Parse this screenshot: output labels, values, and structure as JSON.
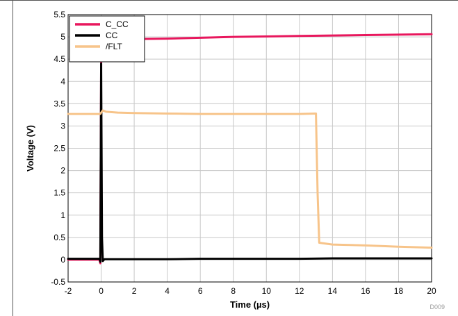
{
  "chart_data": {
    "type": "line",
    "xlabel": "Time (µs)",
    "ylabel": "Voltage (V)",
    "xlim": [
      -2,
      20
    ],
    "ylim": [
      -0.5,
      5.5
    ],
    "xticks": [
      -2,
      0,
      2,
      4,
      6,
      8,
      10,
      12,
      14,
      16,
      18,
      20
    ],
    "yticks": [
      -0.5,
      0,
      0.5,
      1,
      1.5,
      2,
      2.5,
      3,
      3.5,
      4,
      4.5,
      5,
      5.5
    ],
    "xtick_labels": [
      "-2",
      "0",
      "2",
      "4",
      "6",
      "8",
      "10",
      "12",
      "14",
      "16",
      "18",
      "20"
    ],
    "ytick_labels": [
      "-0.5",
      "0",
      "0.5",
      "1",
      "1.5",
      "2",
      "2.5",
      "3",
      "3.5",
      "4",
      "4.5",
      "5",
      "5.5"
    ],
    "grid": true,
    "legend_position": "top-left",
    "series": [
      {
        "name": "C_CC",
        "color": "#e8175d",
        "x": [
          -2,
          -0.1,
          -0.05,
          0,
          0.05,
          0.1,
          0.2,
          1,
          2,
          4,
          6,
          8,
          10,
          12,
          14,
          16,
          18,
          20
        ],
        "y": [
          0.0,
          0.0,
          -0.08,
          4.4,
          4.95,
          4.93,
          4.93,
          4.94,
          4.95,
          4.96,
          4.98,
          5.0,
          5.01,
          5.02,
          5.03,
          5.04,
          5.05,
          5.06
        ]
      },
      {
        "name": "CC",
        "color": "#000000",
        "x": [
          -2,
          -0.1,
          -0.05,
          0,
          0.05,
          0.1,
          0.2,
          2,
          4,
          6,
          8,
          10,
          12,
          14,
          16,
          18,
          20
        ],
        "y": [
          0.02,
          0.02,
          -0.05,
          4.4,
          0.5,
          -0.03,
          0.01,
          0.01,
          0.01,
          0.02,
          0.02,
          0.02,
          0.02,
          0.03,
          0.03,
          0.03,
          0.03
        ]
      },
      {
        "name": "/FLT",
        "color": "#f7c48a",
        "x": [
          -2,
          -0.05,
          0,
          0.1,
          0.3,
          1,
          2,
          4,
          6,
          8,
          10,
          12,
          13.0,
          13.1,
          13.2,
          14,
          16,
          18,
          20
        ],
        "y": [
          3.27,
          3.27,
          3.3,
          3.35,
          3.32,
          3.3,
          3.29,
          3.28,
          3.27,
          3.27,
          3.27,
          3.27,
          3.28,
          1.5,
          0.38,
          0.34,
          0.32,
          0.29,
          0.27
        ]
      }
    ],
    "annotations": [
      "D009"
    ]
  }
}
